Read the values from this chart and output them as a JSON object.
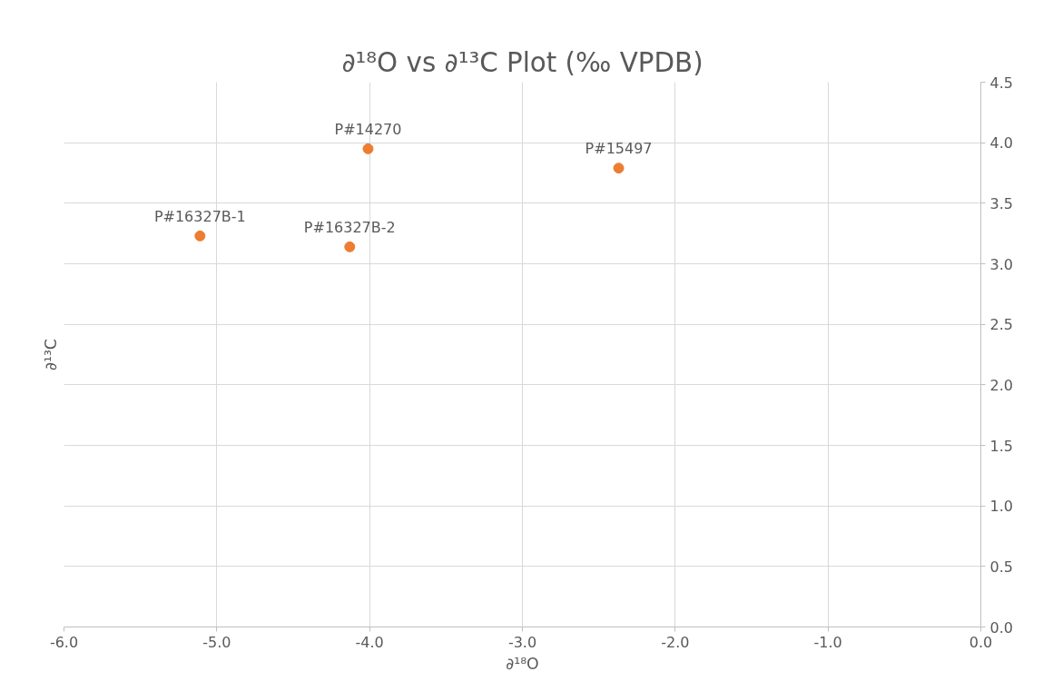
{
  "chart_data": {
    "type": "scatter",
    "title": "∂¹⁸O vs ∂¹³C Plot (‰ VPDB)",
    "xlabel": "∂¹⁸O",
    "ylabel": "∂¹³C",
    "x": [
      -5.11,
      -4.13,
      -4.01,
      -2.37
    ],
    "series": [
      {
        "color": "#ed7d31",
        "values": [
          3.23,
          3.14,
          3.95,
          3.79
        ]
      }
    ],
    "xlim": [
      -6,
      0
    ],
    "ylim": [
      0,
      4.5
    ],
    "xticks": [
      {
        "value": -6,
        "label": "-6.0"
      },
      {
        "value": -5,
        "label": "-5.0"
      },
      {
        "value": -4,
        "label": "-4.0"
      },
      {
        "value": -3,
        "label": "-3.0"
      },
      {
        "value": -2,
        "label": "-2.0"
      },
      {
        "value": -1,
        "label": "-1.0"
      },
      {
        "value": 0,
        "label": "0.0"
      }
    ],
    "yticks": [
      {
        "value": 0,
        "label": "0.0"
      },
      0.5,
      {
        "value": 1,
        "label": "1.0"
      },
      1.5,
      {
        "value": 2,
        "label": "2.0"
      },
      2.5,
      {
        "value": 3,
        "label": "3.0"
      },
      3.5,
      {
        "value": 4,
        "label": "4.0"
      },
      4.5
    ],
    "annotations": [
      {
        "text": "P#16327B-1",
        "x": -5.11,
        "y": 3.23
      },
      {
        "text": "P#16327B-2",
        "x": -4.13,
        "y": 3.14
      },
      {
        "text": "P#14270",
        "x": -4.01,
        "y": 3.95
      },
      {
        "text": "P#15497",
        "x": -2.37,
        "y": 3.79
      }
    ],
    "grid": true,
    "marker": "circle"
  }
}
